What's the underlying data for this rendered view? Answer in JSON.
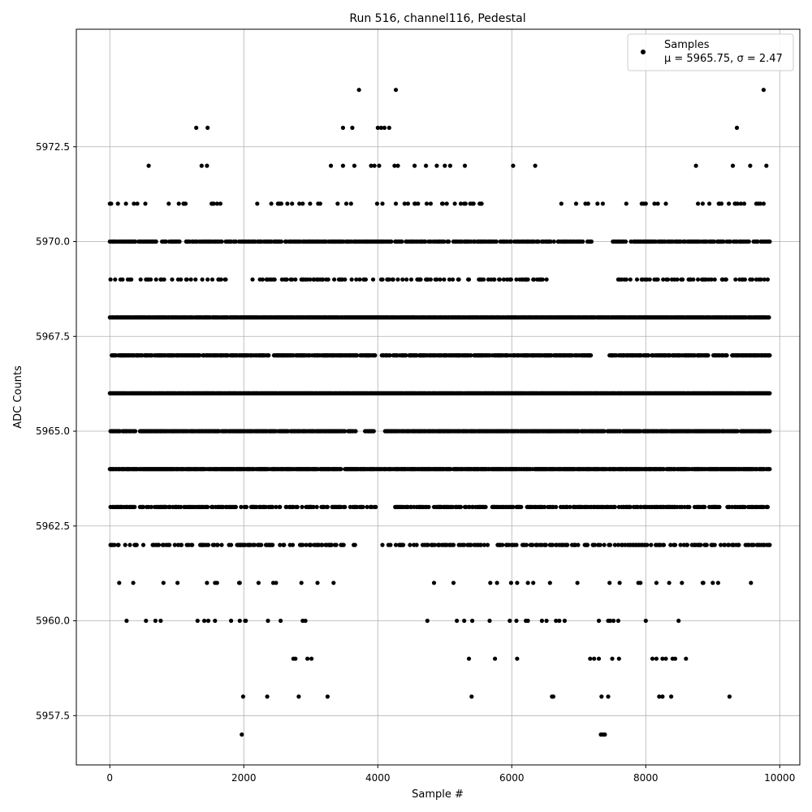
{
  "chart_data": {
    "type": "scatter",
    "title": "Run 516, channel116, Pedestal",
    "xlabel": "Sample #",
    "ylabel": "ADC Counts",
    "xlim": [
      -500,
      10300
    ],
    "ylim": [
      5956.2,
      5975.6
    ],
    "grid": true,
    "legend_placement": "top-right",
    "marker_color": "#000000",
    "x_ticks": [
      {
        "value": 0,
        "label": "0"
      },
      {
        "value": 2000,
        "label": "2000"
      },
      {
        "value": 4000,
        "label": "4000"
      },
      {
        "value": 6000,
        "label": "6000"
      },
      {
        "value": 8000,
        "label": "8000"
      },
      {
        "value": 10000,
        "label": "10000"
      }
    ],
    "y_ticks": [
      {
        "value": 5957.5,
        "label": "5957.5"
      },
      {
        "value": 5960.0,
        "label": "5960.0"
      },
      {
        "value": 5962.5,
        "label": "5962.5"
      },
      {
        "value": 5965.0,
        "label": "5965.0"
      },
      {
        "value": 5967.5,
        "label": "5967.5"
      },
      {
        "value": 5970.0,
        "label": "5970.0"
      },
      {
        "value": 5972.5,
        "label": "5972.5"
      }
    ],
    "legend": {
      "label": "Samples",
      "stats": "μ = 5965.75, σ = 2.47"
    },
    "series": [
      {
        "name": "Samples",
        "sample_range": [
          0,
          9850
        ],
        "points": [
          {
            "x": 3720,
            "y": 5974
          },
          {
            "x": 4270,
            "y": 5974
          },
          {
            "x": 9760,
            "y": 5974
          },
          {
            "x": 1290,
            "y": 5973
          },
          {
            "x": 1460,
            "y": 5973
          },
          {
            "x": 3480,
            "y": 5973
          },
          {
            "x": 3620,
            "y": 5973
          },
          {
            "x": 4000,
            "y": 5973
          },
          {
            "x": 4050,
            "y": 5973
          },
          {
            "x": 4100,
            "y": 5973
          },
          {
            "x": 4170,
            "y": 5973
          },
          {
            "x": 9360,
            "y": 5973
          },
          {
            "x": 580,
            "y": 5972
          },
          {
            "x": 1370,
            "y": 5972
          },
          {
            "x": 1450,
            "y": 5972
          },
          {
            "x": 3300,
            "y": 5972
          },
          {
            "x": 3480,
            "y": 5972
          },
          {
            "x": 3650,
            "y": 5972
          },
          {
            "x": 3900,
            "y": 5972
          },
          {
            "x": 3950,
            "y": 5972
          },
          {
            "x": 4020,
            "y": 5972
          },
          {
            "x": 4250,
            "y": 5972
          },
          {
            "x": 4300,
            "y": 5972
          },
          {
            "x": 4550,
            "y": 5972
          },
          {
            "x": 4720,
            "y": 5972
          },
          {
            "x": 4880,
            "y": 5972
          },
          {
            "x": 5000,
            "y": 5972
          },
          {
            "x": 5080,
            "y": 5972
          },
          {
            "x": 5300,
            "y": 5972
          },
          {
            "x": 6020,
            "y": 5972
          },
          {
            "x": 6350,
            "y": 5972
          },
          {
            "x": 8750,
            "y": 5972
          },
          {
            "x": 9300,
            "y": 5972
          },
          {
            "x": 9560,
            "y": 5972
          },
          {
            "x": 9800,
            "y": 5972
          },
          {
            "x": 1970,
            "y": 5957
          },
          {
            "x": 7330,
            "y": 5957
          },
          {
            "x": 7360,
            "y": 5957
          },
          {
            "x": 7390,
            "y": 5957
          },
          {
            "x": 1990,
            "y": 5958
          },
          {
            "x": 2350,
            "y": 5958
          },
          {
            "x": 2820,
            "y": 5958
          },
          {
            "x": 3250,
            "y": 5958
          },
          {
            "x": 5400,
            "y": 5958
          },
          {
            "x": 6600,
            "y": 5958
          },
          {
            "x": 6620,
            "y": 5958
          },
          {
            "x": 7340,
            "y": 5958
          },
          {
            "x": 7440,
            "y": 5958
          },
          {
            "x": 8200,
            "y": 5958
          },
          {
            "x": 8250,
            "y": 5958
          },
          {
            "x": 8380,
            "y": 5958
          },
          {
            "x": 9250,
            "y": 5958
          },
          {
            "x": 2740,
            "y": 5959
          },
          {
            "x": 2770,
            "y": 5959
          },
          {
            "x": 2950,
            "y": 5959
          },
          {
            "x": 3010,
            "y": 5959
          },
          {
            "x": 5360,
            "y": 5959
          },
          {
            "x": 5750,
            "y": 5959
          },
          {
            "x": 6080,
            "y": 5959
          },
          {
            "x": 7170,
            "y": 5959
          },
          {
            "x": 7230,
            "y": 5959
          },
          {
            "x": 7300,
            "y": 5959
          },
          {
            "x": 7500,
            "y": 5959
          },
          {
            "x": 7600,
            "y": 5959
          },
          {
            "x": 8100,
            "y": 5959
          },
          {
            "x": 8160,
            "y": 5959
          },
          {
            "x": 8250,
            "y": 5959
          },
          {
            "x": 8300,
            "y": 5959
          },
          {
            "x": 8400,
            "y": 5959
          },
          {
            "x": 8440,
            "y": 5959
          },
          {
            "x": 8600,
            "y": 5959
          }
        ],
        "bands": [
          {
            "y": 5960,
            "density": 0.04,
            "gaps": [
              [
                3100,
                4600
              ],
              [
                8950,
                9850
              ]
            ]
          },
          {
            "y": 5961,
            "density": 0.05,
            "gaps": [
              [
                3400,
                4800
              ],
              [
                9300,
                9550
              ],
              [
                9650,
                9850
              ]
            ]
          },
          {
            "y": 5962,
            "density": 0.3,
            "gaps": [
              [
                3800,
                4050
              ]
            ]
          },
          {
            "y": 5963,
            "density": 0.45,
            "gaps": [
              [
                3980,
                4250
              ]
            ]
          },
          {
            "y": 5964,
            "density": 0.85,
            "gaps": []
          },
          {
            "y": 5965,
            "density": 0.75,
            "gaps": [
              [
                3680,
                3800
              ],
              [
                3950,
                4100
              ]
            ]
          },
          {
            "y": 5966,
            "density": 0.95,
            "gaps": []
          },
          {
            "y": 5967,
            "density": 0.65,
            "gaps": [
              [
                3980,
                4050
              ],
              [
                7200,
                7450
              ]
            ]
          },
          {
            "y": 5968,
            "density": 0.9,
            "gaps": []
          },
          {
            "y": 5969,
            "density": 0.2,
            "gaps": [
              [
                1750,
                2100
              ],
              [
                6700,
                7500
              ]
            ]
          },
          {
            "y": 5970,
            "density": 0.55,
            "gaps": [
              [
                7200,
                7500
              ]
            ]
          },
          {
            "y": 5971,
            "density": 0.1,
            "gaps": [
              [
                1700,
                2100
              ],
              [
                5700,
                6700
              ]
            ]
          }
        ]
      }
    ]
  }
}
